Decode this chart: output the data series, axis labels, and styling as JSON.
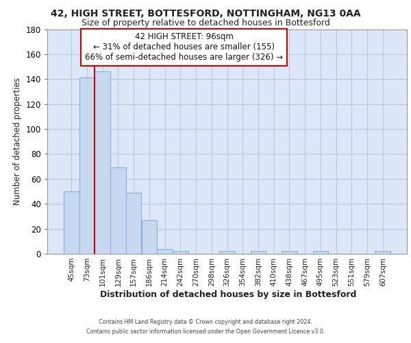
{
  "title": "42, HIGH STREET, BOTTESFORD, NOTTINGHAM, NG13 0AA",
  "subtitle": "Size of property relative to detached houses in Bottesford",
  "xlabel": "Distribution of detached houses by size in Bottesford",
  "ylabel": "Number of detached properties",
  "bar_labels": [
    "45sqm",
    "73sqm",
    "101sqm",
    "129sqm",
    "157sqm",
    "186sqm",
    "214sqm",
    "242sqm",
    "270sqm",
    "298sqm",
    "326sqm",
    "354sqm",
    "382sqm",
    "410sqm",
    "438sqm",
    "467sqm",
    "495sqm",
    "523sqm",
    "551sqm",
    "579sqm",
    "607sqm"
  ],
  "bar_values": [
    50,
    141,
    146,
    69,
    49,
    27,
    4,
    2,
    0,
    0,
    2,
    0,
    2,
    0,
    2,
    0,
    2,
    0,
    0,
    0,
    2
  ],
  "bar_color": "#c8d8f0",
  "bar_edge_color": "#8aafd4",
  "ylim_max": 180,
  "yticks": [
    0,
    20,
    40,
    60,
    80,
    100,
    120,
    140,
    160,
    180
  ],
  "vline_x": 2.0,
  "vline_color": "#cc0000",
  "annotation_title": "42 HIGH STREET: 96sqm",
  "annotation_line1": "← 31% of detached houses are smaller (155)",
  "annotation_line2": "66% of semi-detached houses are larger (326) →",
  "background_color": "#dce8f8",
  "grid_color": "#b8c8dc",
  "footer_line1": "Contains HM Land Registry data © Crown copyright and database right 2024.",
  "footer_line2": "Contains public sector information licensed under the Open Government Licence v3.0."
}
